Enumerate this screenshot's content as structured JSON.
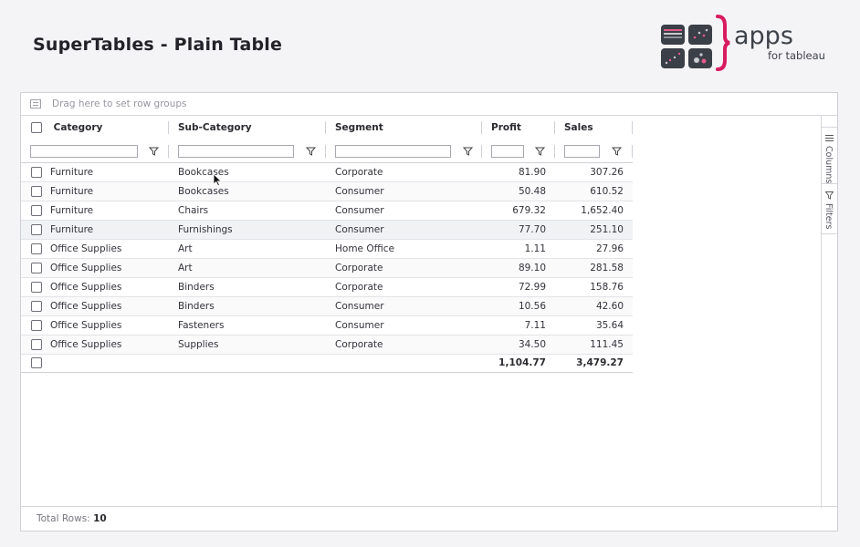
{
  "page": {
    "title": "SuperTables - Plain Table"
  },
  "logo": {
    "word": "apps",
    "sub": "for tableau",
    "brand_color": "#d81b60",
    "tile_color": "#3b3f47"
  },
  "grid": {
    "group_bar_text": "Drag here to set row groups",
    "columns": [
      "Category",
      "Sub-Category",
      "Segment",
      "Profit",
      "Sales"
    ],
    "rows": [
      [
        "Furniture",
        "Bookcases",
        "Corporate",
        "81.90",
        "307.26"
      ],
      [
        "Furniture",
        "Bookcases",
        "Consumer",
        "50.48",
        "610.52"
      ],
      [
        "Furniture",
        "Chairs",
        "Consumer",
        "679.32",
        "1,652.40"
      ],
      [
        "Furniture",
        "Furnishings",
        "Consumer",
        "77.70",
        "251.10"
      ],
      [
        "Office Supplies",
        "Art",
        "Home Office",
        "1.11",
        "27.96"
      ],
      [
        "Office Supplies",
        "Art",
        "Corporate",
        "89.10",
        "281.58"
      ],
      [
        "Office Supplies",
        "Binders",
        "Corporate",
        "72.99",
        "158.76"
      ],
      [
        "Office Supplies",
        "Binders",
        "Consumer",
        "10.56",
        "42.60"
      ],
      [
        "Office Supplies",
        "Fasteners",
        "Consumer",
        "7.11",
        "35.64"
      ],
      [
        "Office Supplies",
        "Supplies",
        "Corporate",
        "34.50",
        "111.45"
      ]
    ],
    "totals": {
      "profit": "1,104.77",
      "sales": "3,479.27"
    },
    "side_panel": {
      "columns_label": "Columns",
      "filters_label": "Filters"
    },
    "footer": {
      "label": "Total Rows:",
      "count": "10"
    }
  }
}
